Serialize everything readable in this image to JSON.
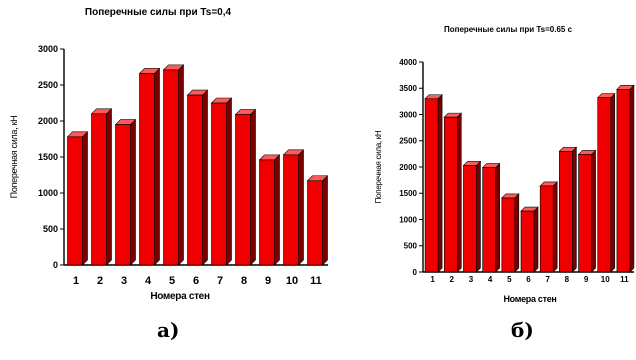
{
  "chart_data": [
    {
      "type": "bar",
      "title": "Поперечные силы при Ts=0,4",
      "xlabel": "Номера стен",
      "ylabel": "Поперечная сила, кН",
      "categories": [
        "1",
        "2",
        "3",
        "4",
        "5",
        "6",
        "7",
        "8",
        "9",
        "10",
        "11"
      ],
      "values": [
        1780,
        2100,
        1950,
        2660,
        2710,
        2360,
        2250,
        2090,
        1460,
        1530,
        1170
      ],
      "ylim": [
        0,
        3000
      ],
      "yticks": [
        "0",
        "500",
        "1000",
        "1500",
        "2000",
        "2500",
        "3000"
      ],
      "bar_color": "#ee0000",
      "bar_style": "3d",
      "grid": false,
      "legend": "none"
    },
    {
      "type": "bar",
      "title": "Поперечные силы при Ts=0.65 с",
      "xlabel": "Номера стен",
      "ylabel": "Поперечная сила, кН",
      "categories": [
        "1",
        "2",
        "3",
        "4",
        "5",
        "6",
        "7",
        "8",
        "9",
        "10",
        "11"
      ],
      "values": [
        3300,
        2950,
        2030,
        1990,
        1410,
        1160,
        1640,
        2300,
        2240,
        3320,
        3480
      ],
      "ylim": [
        0,
        4000
      ],
      "yticks": [
        "0",
        "500",
        "1000",
        "1500",
        "2000",
        "2500",
        "3000",
        "3500",
        "4000"
      ],
      "bar_color": "#ee0000",
      "bar_style": "3d",
      "grid": false,
      "legend": "none"
    }
  ],
  "captions": {
    "left": "а)",
    "right": "б)"
  }
}
